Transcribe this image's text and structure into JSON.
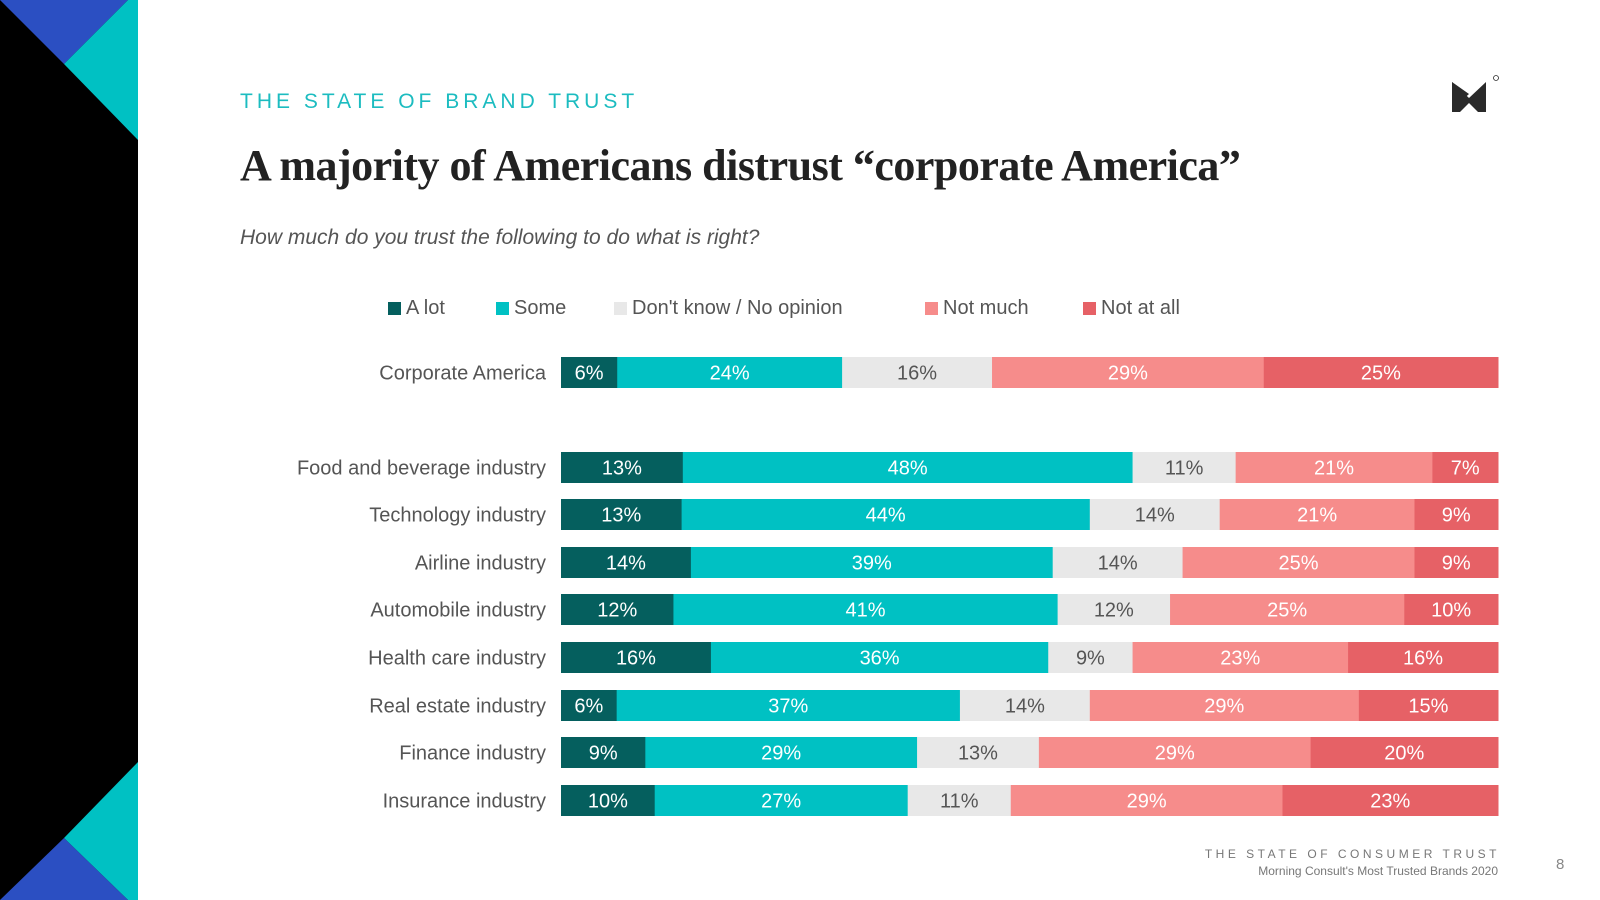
{
  "kicker": "THE STATE OF BRAND TRUST",
  "title": "A majority of Americans distrust “corporate America”",
  "subtitle": "How much do you trust the following to do what is right?",
  "footer": {
    "line1": "THE STATE OF CONSUMER TRUST",
    "line2": "Morning Consult's Most Trusted Brands 2020",
    "page_number": "8"
  },
  "colors": {
    "a_lot": "#055f5e",
    "some": "#00c1c3",
    "dont_know": "#e8e8e8",
    "not_much": "#f68c8b",
    "not_at_all": "#e66166",
    "accent": "#1cbcc0",
    "deco_blue": "#2b4fc2",
    "deco_teal": "#00c1c3"
  },
  "chart_data": {
    "type": "bar",
    "orientation": "horizontal",
    "stacked": true,
    "title": "A majority of Americans distrust “corporate America”",
    "subtitle": "How much do you trust the following to do what is right?",
    "xlabel": "",
    "ylabel": "",
    "xlim": [
      0,
      100
    ],
    "grid": false,
    "legend_position": "top",
    "value_format": "percent",
    "categories": [
      "Corporate America",
      "Food and beverage industry",
      "Technology industry",
      "Airline industry",
      "Automobile industry",
      "Health care industry",
      "Real estate industry",
      "Finance industry",
      "Insurance industry"
    ],
    "series": [
      {
        "name": "A lot",
        "color": "#055f5e",
        "label_color": "#ffffff",
        "values": [
          6,
          13,
          13,
          14,
          12,
          16,
          6,
          9,
          10
        ]
      },
      {
        "name": "Some",
        "color": "#00c1c3",
        "label_color": "#ffffff",
        "values": [
          24,
          48,
          44,
          39,
          41,
          36,
          37,
          29,
          27
        ]
      },
      {
        "name": "Don't know / No opinion",
        "color": "#e8e8e8",
        "label_color": "#555555",
        "values": [
          16,
          11,
          14,
          14,
          12,
          9,
          14,
          13,
          11
        ]
      },
      {
        "name": "Not much",
        "color": "#f68c8b",
        "label_color": "#ffffff",
        "values": [
          29,
          21,
          21,
          25,
          25,
          23,
          29,
          29,
          29
        ]
      },
      {
        "name": "Not at all",
        "color": "#e66166",
        "label_color": "#ffffff",
        "values": [
          25,
          7,
          9,
          9,
          10,
          16,
          15,
          20,
          23
        ]
      }
    ]
  }
}
